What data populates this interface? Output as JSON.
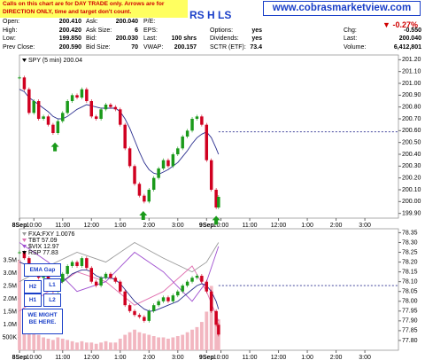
{
  "header": {
    "notice": "Calls on this chart are for DAY TRADE only. Arrows are for DIRECTION ONLY, time and target don't count.",
    "symbol_title": "RS H LS",
    "site": "www.cobrasmarketview.com",
    "change_pct": "-0.27%"
  },
  "quote": {
    "rows": [
      [
        {
          "label": "Open:",
          "value": "200.410"
        },
        {
          "label": "Ask:",
          "value": "200.040"
        },
        {
          "label": "P/E:"
        }
      ],
      [
        {
          "label": "High:",
          "value": "200.420"
        },
        {
          "label": "Ask Size:",
          "value": "6"
        },
        {
          "label": "EPS:"
        },
        {
          "label": "Options:",
          "value": "yes"
        },
        {
          "label": "Chg:",
          "value": "-0.550"
        }
      ],
      [
        {
          "label": "Low:",
          "value": "199.850"
        },
        {
          "label": "Bid:",
          "value": "200.030"
        },
        {
          "label": "Last:",
          "value": "100 shrs"
        },
        {
          "label": "Dividends:",
          "value": "yes"
        },
        {
          "label": "Last:",
          "value": "200.040"
        }
      ],
      [
        {
          "label": "Prev Close:",
          "value": "200.590"
        },
        {
          "label": "Bid Size:",
          "value": "70"
        },
        {
          "label": "VWAP:",
          "value": "200.157"
        },
        {
          "label": "SCTR (ETF):",
          "value": "73.4"
        },
        {
          "label": "Volume:",
          "value": "6,412,801"
        }
      ]
    ]
  },
  "annotations": [
    "EMA Gap",
    "H2",
    "L1",
    "H1",
    "L2",
    "WE MIGHT BE HERE."
  ],
  "chart_data": [
    {
      "type": "candlestick",
      "x": [
        0,
        10,
        20,
        30,
        40,
        50,
        60,
        70,
        80,
        90,
        100,
        110,
        120,
        130,
        140,
        150,
        160,
        170,
        180,
        190,
        200,
        210,
        220,
        230,
        240,
        250,
        260,
        270,
        280,
        290,
        300,
        310,
        320,
        330,
        340,
        350,
        360,
        370,
        380,
        390,
        400,
        410,
        415
      ],
      "xlim": [
        0,
        790
      ],
      "xticks": [
        {
          "value": 0,
          "label": "8Sep"
        },
        {
          "value": 30,
          "label": "10:00"
        },
        {
          "value": 90,
          "label": "11:00"
        },
        {
          "value": 150,
          "label": "12:00"
        },
        {
          "value": 210,
          "label": "1:00"
        },
        {
          "value": 270,
          "label": "2:00"
        },
        {
          "value": 330,
          "label": "3:00"
        },
        {
          "value": 390,
          "label": "9Sep"
        },
        {
          "value": 420,
          "label": "10:00"
        },
        {
          "value": 480,
          "label": "11:00"
        },
        {
          "value": 540,
          "label": "12:00"
        },
        {
          "value": 600,
          "label": "1:00"
        },
        {
          "value": 660,
          "label": "2:00"
        },
        {
          "value": 720,
          "label": "3:00"
        }
      ],
      "ylim": [
        199.86,
        201.24
      ],
      "yticks": [
        {
          "value": 199.9,
          "label": "199.90"
        },
        {
          "value": 200.0,
          "label": "200.00"
        },
        {
          "value": 200.1,
          "label": "200.10"
        },
        {
          "value": 200.2,
          "label": "200.20"
        },
        {
          "value": 200.3,
          "label": "200.30"
        },
        {
          "value": 200.4,
          "label": "200.40"
        },
        {
          "value": 200.5,
          "label": "200.50"
        },
        {
          "value": 200.6,
          "label": "200.60"
        },
        {
          "value": 200.7,
          "label": "200.70"
        },
        {
          "value": 200.8,
          "label": "200.80"
        },
        {
          "value": 200.9,
          "label": "200.90"
        },
        {
          "value": 201.0,
          "label": "201.00"
        },
        {
          "value": 201.1,
          "label": "201.10"
        },
        {
          "value": 201.2,
          "label": "201.20"
        }
      ],
      "ref_line": 200.59,
      "series": [
        {
          "type": "line",
          "color": "#2b2f8f",
          "values": [
            200.95,
            200.93,
            200.88,
            200.85,
            200.82,
            200.79,
            200.76,
            200.72,
            200.7,
            200.7,
            200.72,
            200.75,
            200.78,
            200.8,
            200.82,
            200.81,
            200.8,
            200.79,
            200.79,
            200.79,
            200.79,
            200.76,
            200.7,
            200.62,
            200.52,
            200.42,
            200.33,
            200.27,
            200.24,
            200.23,
            200.25,
            200.27,
            200.3,
            200.33,
            200.38,
            200.43,
            200.49,
            200.54,
            200.57,
            200.59,
            200.54,
            200.45,
            200.4
          ]
        },
        {
          "type": "candlestick",
          "name": "SPY (5 min) 200.04",
          "color": "#000000",
          "up_color": "#1a9a1a",
          "down_color": "#d00020",
          "values": [
            201.05,
            200.95,
            200.75,
            200.85,
            200.7,
            200.72,
            200.65,
            200.58,
            200.68,
            200.75,
            200.85,
            200.9,
            200.88,
            200.95,
            200.85,
            200.72,
            200.7,
            200.78,
            200.82,
            200.8,
            200.78,
            200.65,
            200.45,
            200.3,
            200.15,
            200.05,
            200.0,
            200.1,
            200.2,
            200.28,
            200.35,
            200.3,
            200.4,
            200.45,
            200.55,
            200.6,
            200.7,
            200.72,
            200.65,
            200.35,
            200.1,
            199.95,
            200.04
          ]
        }
      ],
      "signal_arrows": [
        {
          "x": 74,
          "y": 200.5
        },
        {
          "x": 258,
          "y": 199.92
        },
        {
          "x": 410,
          "y": 199.88
        }
      ],
      "arrow_color": "#1a9a1a"
    },
    {
      "type": "candlestick",
      "x": [
        0,
        10,
        20,
        30,
        40,
        50,
        60,
        70,
        80,
        90,
        100,
        110,
        120,
        130,
        140,
        150,
        160,
        170,
        180,
        190,
        200,
        210,
        220,
        230,
        240,
        250,
        260,
        270,
        280,
        290,
        300,
        310,
        320,
        330,
        340,
        350,
        360,
        370,
        380,
        390,
        400,
        410,
        415
      ],
      "xlim": [
        0,
        790
      ],
      "xticks": [
        {
          "value": 0,
          "label": "8Sep"
        },
        {
          "value": 30,
          "label": "10:00"
        },
        {
          "value": 90,
          "label": "11:00"
        },
        {
          "value": 150,
          "label": "12:00"
        },
        {
          "value": 210,
          "label": "1:00"
        },
        {
          "value": 270,
          "label": "2:00"
        },
        {
          "value": 330,
          "label": "3:00"
        },
        {
          "value": 390,
          "label": "9Sep"
        },
        {
          "value": 420,
          "label": "10:00"
        },
        {
          "value": 480,
          "label": "11:00"
        },
        {
          "value": 540,
          "label": "12:00"
        },
        {
          "value": 600,
          "label": "1:00"
        },
        {
          "value": 660,
          "label": "2:00"
        },
        {
          "value": 720,
          "label": "3:00"
        }
      ],
      "ylim": [
        77.75,
        78.37
      ],
      "yticks": [
        {
          "value": 77.8,
          "label": "77.80"
        },
        {
          "value": 77.85,
          "label": "77.85"
        },
        {
          "value": 77.9,
          "label": "77.90"
        },
        {
          "value": 77.95,
          "label": "77.95"
        },
        {
          "value": 78.0,
          "label": "78.00"
        },
        {
          "value": 78.05,
          "label": "78.05"
        },
        {
          "value": 78.1,
          "label": "78.10"
        },
        {
          "value": 78.15,
          "label": "78.15"
        },
        {
          "value": 78.2,
          "label": "78.20"
        },
        {
          "value": 78.25,
          "label": "78.25"
        },
        {
          "value": 78.3,
          "label": "78.30"
        },
        {
          "value": 78.35,
          "label": "78.35"
        }
      ],
      "y2lim": [
        0,
        4720000
      ],
      "y2ticks": [
        {
          "value": 500000,
          "label": "500K"
        },
        {
          "value": 1000000,
          "label": "1.0M"
        },
        {
          "value": 1500000,
          "label": "1.5M"
        },
        {
          "value": 2000000,
          "label": "2.0M"
        },
        {
          "value": 2500000,
          "label": "2.5M"
        },
        {
          "value": 3000000,
          "label": "3.0M"
        },
        {
          "value": 3500000,
          "label": "3.5M"
        }
      ],
      "ref_line": 78.08,
      "series": [
        {
          "type": "bar",
          "axis": "y2",
          "color": "#f2b6c0",
          "values": [
            3500000,
            1200000,
            900000,
            700000,
            600000,
            500000,
            450000,
            400000,
            500000,
            450000,
            400000,
            350000,
            300000,
            350000,
            300000,
            300000,
            250000,
            300000,
            350000,
            300000,
            300000,
            450000,
            600000,
            700000,
            800000,
            700000,
            650000,
            600000,
            550000,
            500000,
            500000,
            450000,
            500000,
            550000,
            600000,
            700000,
            800000,
            900000,
            1100000,
            1500000,
            2500000,
            1500000,
            1200000
          ]
        },
        {
          "type": "line",
          "name": "FXA:FXY 1.0076",
          "color": "#9a9a9a",
          "x": [
            0,
            60,
            120,
            180,
            240,
            300,
            360,
            390,
            415
          ],
          "values": [
            78.1,
            78.18,
            78.25,
            78.2,
            78.3,
            78.22,
            78.15,
            78.2,
            78.3
          ]
        },
        {
          "type": "line",
          "name": "TBT 57.09",
          "color": "#e070b0",
          "x": [
            0,
            60,
            120,
            180,
            240,
            300,
            360,
            390,
            415
          ],
          "values": [
            77.95,
            78.05,
            78.15,
            78.1,
            77.98,
            78.05,
            78.18,
            78.05,
            77.9
          ]
        },
        {
          "type": "line",
          "name": "$VIX 12.97",
          "color": "#a050d0",
          "x": [
            0,
            60,
            120,
            180,
            240,
            300,
            360,
            390,
            415
          ],
          "values": [
            78.3,
            78.2,
            78.05,
            78.1,
            78.25,
            78.15,
            78.0,
            78.1,
            78.28
          ]
        },
        {
          "type": "line",
          "color": "#2b2f8f",
          "values": [
            78.2,
            78.19,
            78.17,
            78.16,
            78.15,
            78.14,
            78.12,
            78.1,
            78.09,
            78.1,
            78.12,
            78.14,
            78.15,
            78.16,
            78.16,
            78.15,
            78.13,
            78.12,
            78.12,
            78.12,
            78.11,
            78.09,
            78.06,
            78.03,
            78.0,
            77.98,
            77.96,
            77.95,
            77.95,
            77.96,
            77.97,
            77.98,
            77.99,
            78.0,
            78.02,
            78.04,
            78.06,
            78.08,
            78.09,
            78.08,
            78.05,
            78.0,
            77.96
          ]
        },
        {
          "type": "candlestick",
          "name": "RSP 77.83",
          "color": "#000000",
          "up_color": "#1a9a1a",
          "down_color": "#d00020",
          "values": [
            78.25,
            78.22,
            78.15,
            78.18,
            78.12,
            78.13,
            78.1,
            78.05,
            78.1,
            78.14,
            78.18,
            78.2,
            78.18,
            78.22,
            78.17,
            78.1,
            78.08,
            78.12,
            78.14,
            78.12,
            78.1,
            78.05,
            77.98,
            77.95,
            77.93,
            77.92,
            77.9,
            77.95,
            77.98,
            78.0,
            78.02,
            78.0,
            78.03,
            78.05,
            78.08,
            78.1,
            78.12,
            78.13,
            78.1,
            78.05,
            77.95,
            77.88,
            77.83
          ]
        }
      ]
    }
  ]
}
